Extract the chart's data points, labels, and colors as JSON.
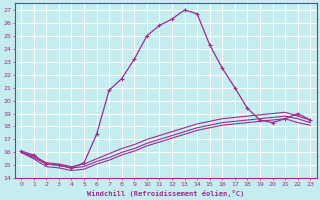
{
  "xlabel": "Windchill (Refroidissement éolien,°C)",
  "background_color": "#c5ecee",
  "grid_color": "#ffffff",
  "line_color": "#9b2d8e",
  "xlim": [
    -0.5,
    23.5
  ],
  "ylim": [
    14,
    27.5
  ],
  "xticks": [
    0,
    1,
    2,
    3,
    4,
    5,
    6,
    7,
    8,
    9,
    10,
    11,
    12,
    13,
    14,
    15,
    16,
    17,
    18,
    19,
    20,
    21,
    22,
    23
  ],
  "yticks": [
    14,
    15,
    16,
    17,
    18,
    19,
    20,
    21,
    22,
    23,
    24,
    25,
    26,
    27
  ],
  "curve1_x": [
    0,
    1,
    2,
    3,
    4,
    5,
    6,
    7,
    8,
    9,
    10,
    11,
    12,
    13,
    14,
    15,
    16,
    17,
    18,
    19,
    20,
    21,
    22,
    23
  ],
  "curve1_y": [
    16.1,
    15.8,
    15.1,
    15.0,
    14.8,
    15.2,
    17.4,
    20.8,
    21.7,
    23.2,
    25.0,
    25.8,
    26.3,
    27.0,
    26.7,
    24.3,
    22.5,
    21.0,
    19.4,
    18.5,
    18.3,
    18.6,
    19.0,
    18.5
  ],
  "curve2_x": [
    0,
    1,
    2,
    3,
    4,
    5,
    6,
    7,
    8,
    9,
    10,
    11,
    12,
    13,
    14,
    15,
    16,
    17,
    18,
    19,
    20,
    21,
    22,
    23
  ],
  "curve2_y": [
    16.0,
    15.6,
    15.1,
    15.0,
    14.8,
    14.9,
    15.3,
    15.6,
    16.0,
    16.3,
    16.7,
    17.0,
    17.3,
    17.6,
    17.9,
    18.1,
    18.3,
    18.4,
    18.5,
    18.6,
    18.7,
    18.8,
    18.6,
    18.3
  ],
  "curve3_x": [
    0,
    1,
    2,
    3,
    4,
    5,
    6,
    7,
    8,
    9,
    10,
    11,
    12,
    13,
    14,
    15,
    16,
    17,
    18,
    19,
    20,
    21,
    22,
    23
  ],
  "curve3_y": [
    16.0,
    15.7,
    15.2,
    15.1,
    14.9,
    15.1,
    15.5,
    15.9,
    16.3,
    16.6,
    17.0,
    17.3,
    17.6,
    17.9,
    18.2,
    18.4,
    18.6,
    18.7,
    18.8,
    18.9,
    19.0,
    19.1,
    18.8,
    18.5
  ],
  "curve4_x": [
    0,
    1,
    2,
    3,
    4,
    5,
    6,
    7,
    8,
    9,
    10,
    11,
    12,
    13,
    14,
    15,
    16,
    17,
    18,
    19,
    20,
    21,
    22,
    23
  ],
  "curve4_y": [
    16.0,
    15.5,
    14.9,
    14.8,
    14.6,
    14.7,
    15.1,
    15.4,
    15.8,
    16.1,
    16.5,
    16.8,
    17.1,
    17.4,
    17.7,
    17.9,
    18.1,
    18.2,
    18.3,
    18.4,
    18.5,
    18.6,
    18.3,
    18.1
  ],
  "figsize": [
    3.2,
    2.0
  ],
  "dpi": 100
}
